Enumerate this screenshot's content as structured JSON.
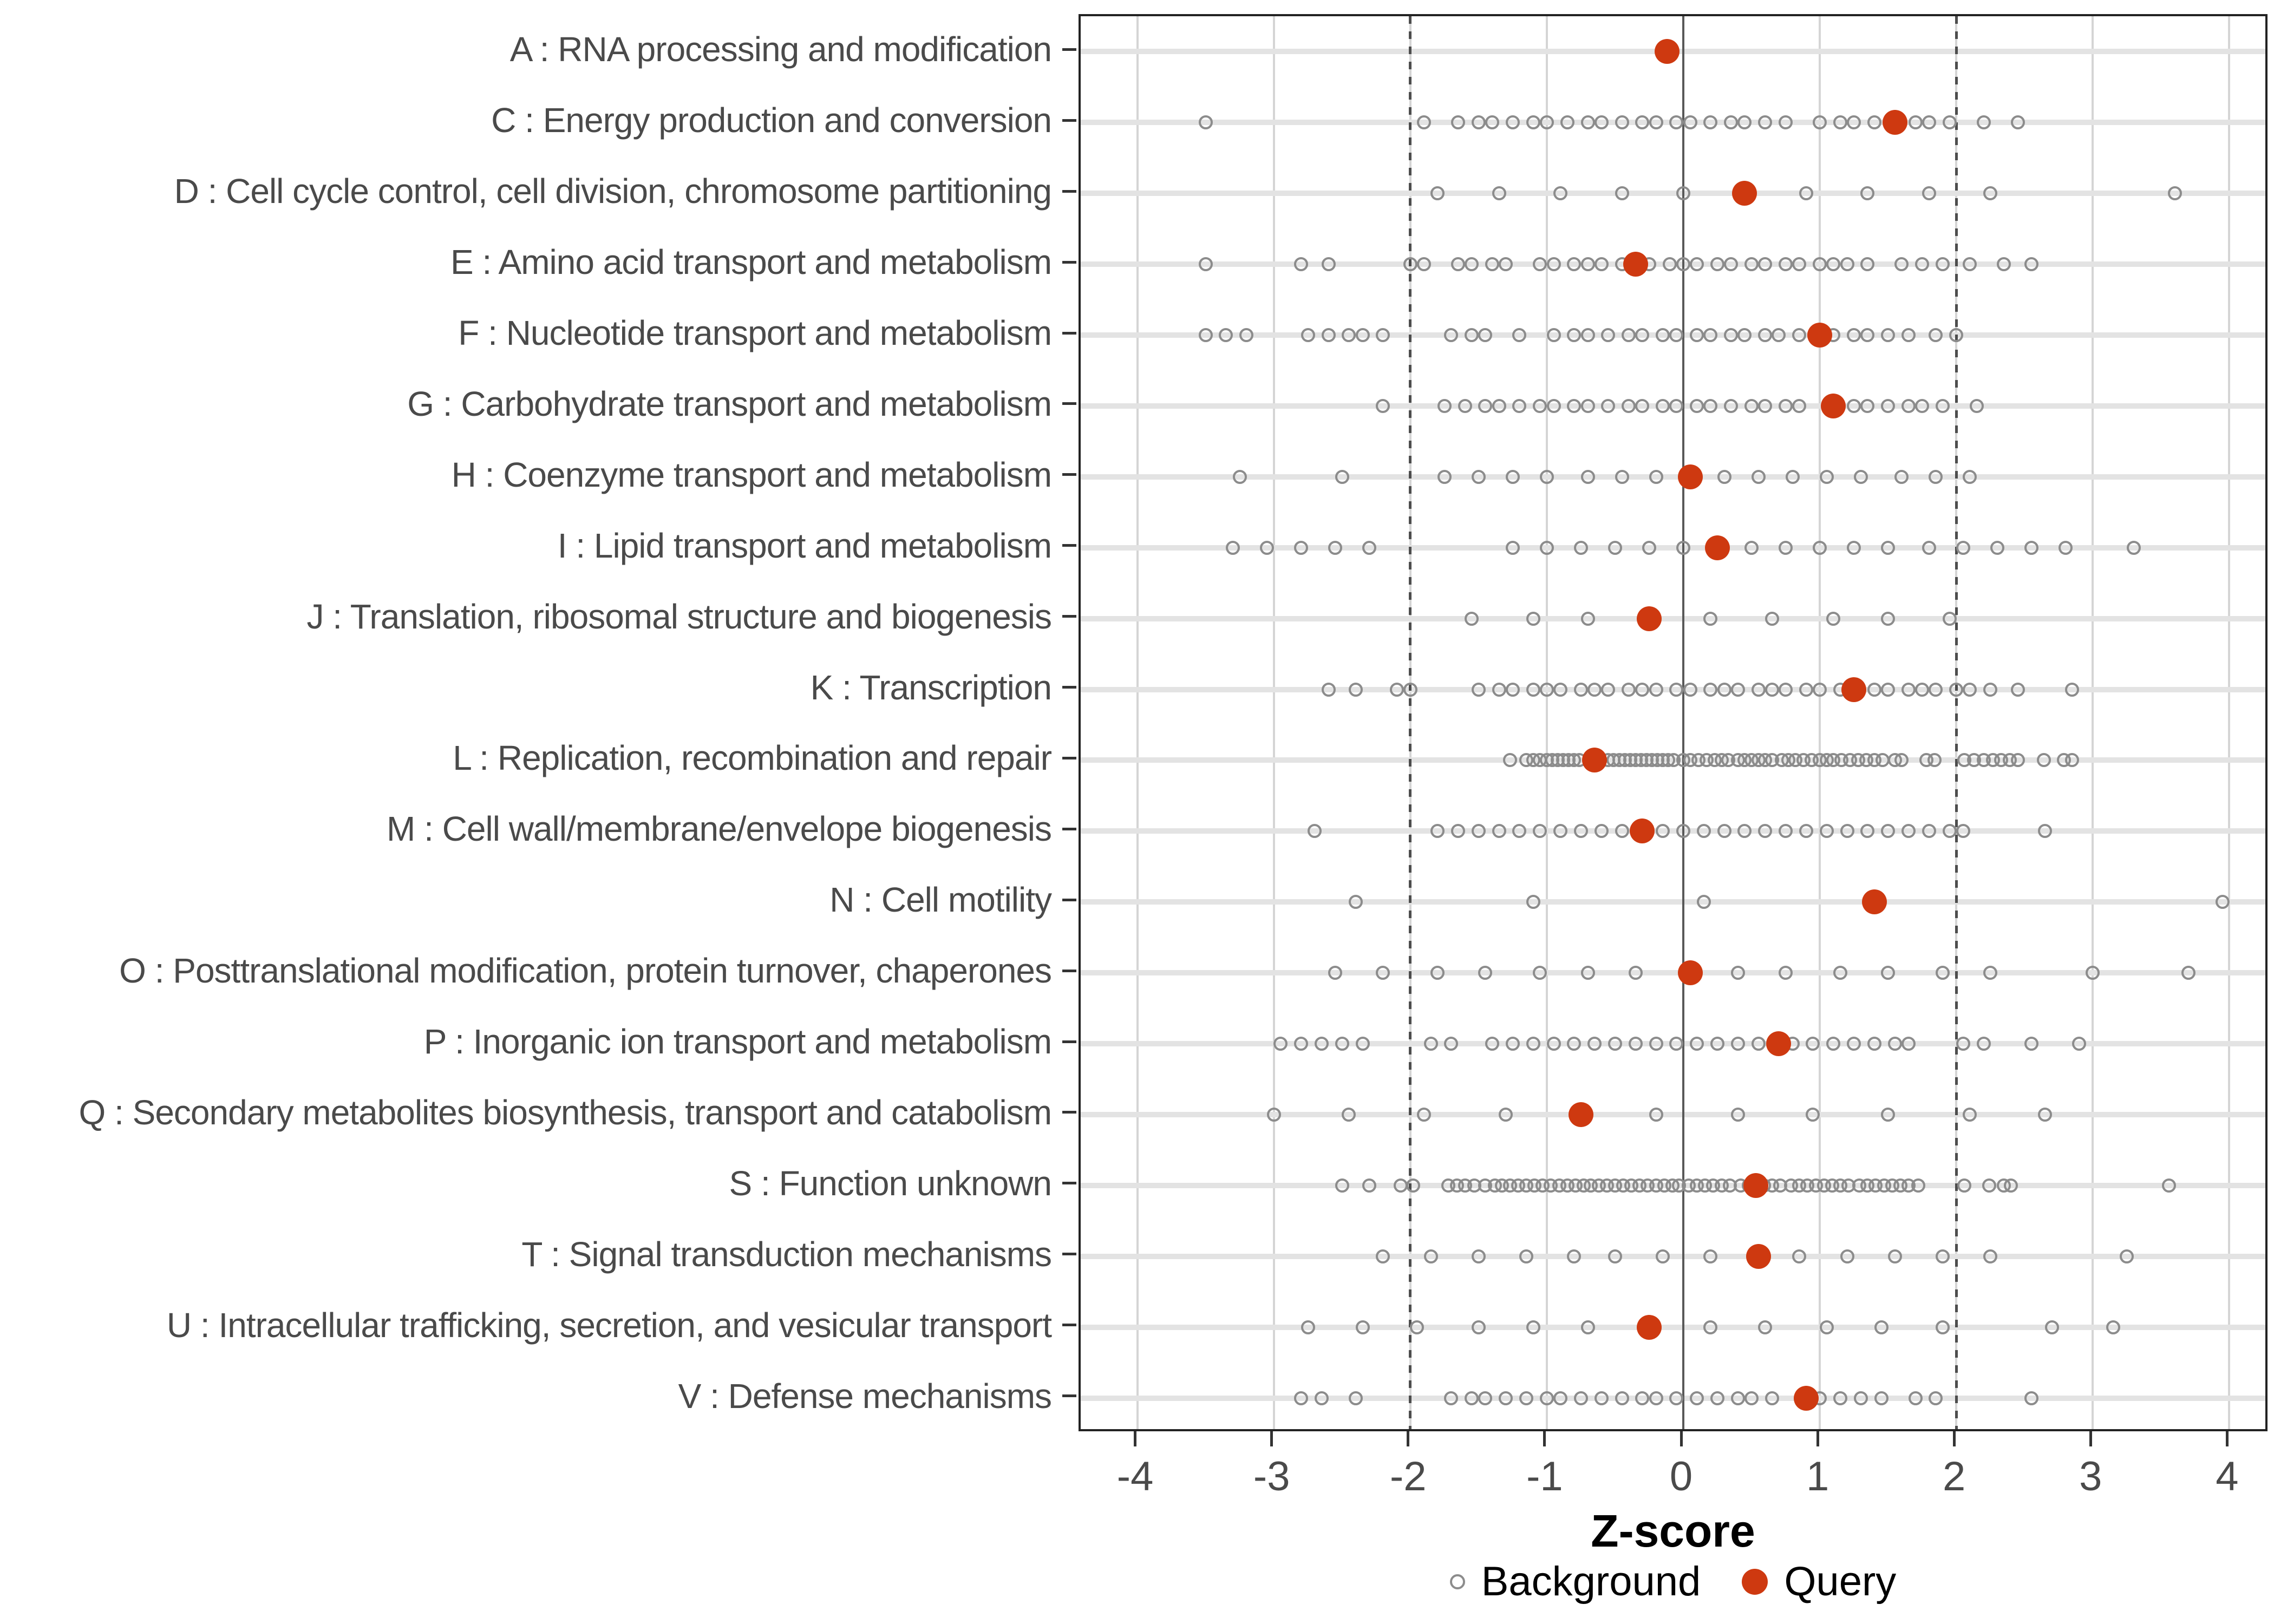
{
  "figure": {
    "colors": {
      "query_point": "#CE3910",
      "background_point_stroke": "#8C8C8C",
      "axis_text": "#4A4A4A",
      "panel_border": "#222222",
      "gridline": "#D5D5D5",
      "row_guide_line": "#E3E3E3",
      "zero_line": "#595959",
      "threshold_dashed_line": "#4D4D4D"
    }
  },
  "chart_data": {
    "type": "scatter",
    "title": "",
    "xlabel": "Z-score",
    "ylabel": "",
    "xlim": [
      -4.42,
      4.3
    ],
    "x_ticks": [
      -4,
      -3,
      -2,
      -1,
      0,
      1,
      2,
      3,
      4
    ],
    "x_tick_labels": [
      "-4",
      "-3",
      "-2",
      "-1",
      "0",
      "1",
      "2",
      "3",
      "4"
    ],
    "zero_line_x": 0,
    "threshold_lines_x": [
      -2,
      2
    ],
    "grid": "vertical-major-plus-row-guides",
    "legend": {
      "background": "Background",
      "query": "Query",
      "position": "bottom-center"
    },
    "categories": [
      {
        "label": "A : RNA processing and modification",
        "query": -0.12,
        "background": []
      },
      {
        "label": "C : Energy production and conversion",
        "query": 1.55,
        "background": [
          -3.5,
          -1.9,
          -1.65,
          -1.5,
          -1.4,
          -1.25,
          -1.1,
          -1.0,
          -0.85,
          -0.7,
          -0.6,
          -0.45,
          -0.3,
          -0.2,
          -0.05,
          0.05,
          0.2,
          0.35,
          0.45,
          0.6,
          0.75,
          1.0,
          1.15,
          1.25,
          1.4,
          1.7,
          1.8,
          1.95,
          2.2,
          2.45
        ]
      },
      {
        "label": "D : Cell cycle control, cell division, chromosome partitioning",
        "query": 0.45,
        "background": [
          -1.8,
          -1.35,
          -0.9,
          -0.45,
          0.0,
          0.9,
          1.35,
          1.8,
          2.25,
          3.6
        ]
      },
      {
        "label": "E : Amino acid transport and metabolism",
        "query": -0.35,
        "background": [
          -3.5,
          -2.8,
          -2.6,
          -2.0,
          -1.9,
          -1.65,
          -1.55,
          -1.4,
          -1.3,
          -1.05,
          -0.95,
          -0.8,
          -0.7,
          -0.6,
          -0.45,
          -0.25,
          -0.1,
          0.0,
          0.1,
          0.25,
          0.35,
          0.5,
          0.6,
          0.75,
          0.85,
          1.0,
          1.1,
          1.2,
          1.35,
          1.6,
          1.75,
          1.9,
          2.1,
          2.35,
          2.55
        ]
      },
      {
        "label": "F : Nucleotide transport and metabolism",
        "query": 1.0,
        "background": [
          -3.5,
          -3.35,
          -3.2,
          -2.75,
          -2.6,
          -2.45,
          -2.35,
          -2.2,
          -1.7,
          -1.55,
          -1.45,
          -1.2,
          -0.95,
          -0.8,
          -0.7,
          -0.55,
          -0.4,
          -0.3,
          -0.15,
          -0.05,
          0.1,
          0.2,
          0.35,
          0.45,
          0.6,
          0.7,
          0.85,
          1.1,
          1.25,
          1.35,
          1.5,
          1.65,
          1.85,
          2.0
        ]
      },
      {
        "label": "G : Carbohydrate transport and metabolism",
        "query": 1.1,
        "background": [
          -2.2,
          -1.75,
          -1.6,
          -1.45,
          -1.35,
          -1.2,
          -1.05,
          -0.95,
          -0.8,
          -0.7,
          -0.55,
          -0.4,
          -0.3,
          -0.15,
          -0.05,
          0.1,
          0.2,
          0.35,
          0.5,
          0.6,
          0.75,
          0.85,
          1.25,
          1.35,
          1.5,
          1.65,
          1.75,
          1.9,
          2.15
        ]
      },
      {
        "label": "H : Coenzyme transport and metabolism",
        "query": 0.05,
        "background": [
          -3.25,
          -2.5,
          -1.75,
          -1.5,
          -1.25,
          -1.0,
          -0.7,
          -0.45,
          -0.2,
          0.3,
          0.55,
          0.8,
          1.05,
          1.3,
          1.6,
          1.85,
          2.1
        ]
      },
      {
        "label": "I : Lipid transport and metabolism",
        "query": 0.25,
        "background": [
          -3.3,
          -3.05,
          -2.8,
          -2.55,
          -2.3,
          -1.25,
          -1.0,
          -0.75,
          -0.5,
          -0.25,
          0.0,
          0.5,
          0.75,
          1.0,
          1.25,
          1.5,
          1.8,
          2.05,
          2.3,
          2.55,
          2.8,
          3.3
        ]
      },
      {
        "label": "J : Translation, ribosomal structure and biogenesis",
        "query": -0.25,
        "background": [
          -1.55,
          -1.1,
          -0.7,
          0.2,
          0.65,
          1.1,
          1.5,
          1.95
        ]
      },
      {
        "label": "K : Transcription",
        "query": 1.25,
        "background": [
          -2.6,
          -2.4,
          -2.1,
          -2.0,
          -1.5,
          -1.35,
          -1.25,
          -1.1,
          -1.0,
          -0.9,
          -0.75,
          -0.65,
          -0.55,
          -0.4,
          -0.3,
          -0.2,
          -0.05,
          0.05,
          0.2,
          0.3,
          0.4,
          0.55,
          0.65,
          0.75,
          0.9,
          1.0,
          1.15,
          1.4,
          1.5,
          1.65,
          1.75,
          1.85,
          2.0,
          2.1,
          2.25,
          2.45,
          2.85
        ]
      },
      {
        "label": "L : Replication, recombination and repair",
        "query": -0.65,
        "background": [
          -1.27,
          -1.15,
          -1.1,
          -1.05,
          -1.0,
          -0.96,
          -0.92,
          -0.88,
          -0.84,
          -0.8,
          -0.76,
          -0.55,
          -0.51,
          -0.47,
          -0.43,
          -0.39,
          -0.35,
          -0.31,
          -0.27,
          -0.23,
          -0.19,
          -0.15,
          -0.11,
          -0.07,
          0.0,
          0.05,
          0.11,
          0.17,
          0.23,
          0.28,
          0.33,
          0.4,
          0.45,
          0.5,
          0.55,
          0.6,
          0.65,
          0.72,
          0.77,
          0.82,
          0.88,
          0.94,
          1.0,
          1.05,
          1.1,
          1.16,
          1.22,
          1.28,
          1.34,
          1.4,
          1.46,
          1.55,
          1.6,
          1.78,
          1.84,
          2.06,
          2.13,
          2.2,
          2.27,
          2.33,
          2.39,
          2.45,
          2.64,
          2.79,
          2.85
        ]
      },
      {
        "label": "M : Cell wall/membrane/envelope biogenesis",
        "query": -0.3,
        "background": [
          -2.7,
          -1.8,
          -1.65,
          -1.5,
          -1.35,
          -1.2,
          -1.05,
          -0.9,
          -0.75,
          -0.6,
          -0.45,
          -0.15,
          0.0,
          0.15,
          0.3,
          0.45,
          0.6,
          0.75,
          0.9,
          1.05,
          1.2,
          1.35,
          1.5,
          1.65,
          1.8,
          1.95,
          2.05,
          2.65
        ]
      },
      {
        "label": "N : Cell motility",
        "query": 1.4,
        "background": [
          -2.4,
          -1.1,
          0.15,
          3.95
        ]
      },
      {
        "label": "O : Posttranslational modification, protein turnover, chaperones",
        "query": 0.05,
        "background": [
          -2.55,
          -2.2,
          -1.8,
          -1.45,
          -1.05,
          -0.7,
          -0.35,
          0.4,
          0.75,
          1.15,
          1.5,
          1.9,
          2.25,
          3.0,
          3.7
        ]
      },
      {
        "label": "P : Inorganic ion transport and metabolism",
        "query": 0.7,
        "background": [
          -2.95,
          -2.8,
          -2.65,
          -2.5,
          -2.35,
          -1.85,
          -1.7,
          -1.4,
          -1.25,
          -1.1,
          -0.95,
          -0.8,
          -0.65,
          -0.5,
          -0.35,
          -0.2,
          -0.05,
          0.1,
          0.25,
          0.4,
          0.55,
          0.8,
          0.95,
          1.1,
          1.25,
          1.4,
          1.55,
          1.65,
          2.05,
          2.2,
          2.55,
          2.9
        ]
      },
      {
        "label": "Q : Secondary metabolites biosynthesis, transport and catabolism",
        "query": -0.75,
        "background": [
          -3.0,
          -2.45,
          -1.9,
          -1.3,
          -0.2,
          0.4,
          0.95,
          1.5,
          2.1,
          2.65
        ]
      },
      {
        "label": "S : Function unknown",
        "query": 0.53,
        "background": [
          -2.5,
          -2.3,
          -2.07,
          -1.98,
          -1.72,
          -1.66,
          -1.6,
          -1.53,
          -1.45,
          -1.38,
          -1.33,
          -1.27,
          -1.21,
          -1.15,
          -1.09,
          -1.03,
          -0.97,
          -0.91,
          -0.85,
          -0.79,
          -0.73,
          -0.68,
          -0.62,
          -0.56,
          -0.5,
          -0.44,
          -0.38,
          -0.32,
          -0.26,
          -0.2,
          -0.14,
          -0.08,
          -0.03,
          0.04,
          0.1,
          0.16,
          0.22,
          0.28,
          0.34,
          0.42,
          0.48,
          0.59,
          0.65,
          0.71,
          0.79,
          0.85,
          0.91,
          0.97,
          1.03,
          1.09,
          1.15,
          1.21,
          1.29,
          1.35,
          1.41,
          1.47,
          1.53,
          1.59,
          1.65,
          1.72,
          2.06,
          2.24,
          2.35,
          2.4,
          3.56
        ]
      },
      {
        "label": "T : Signal transduction mechanisms",
        "query": 0.55,
        "background": [
          -2.2,
          -1.85,
          -1.5,
          -1.15,
          -0.8,
          -0.5,
          -0.15,
          0.2,
          0.85,
          1.2,
          1.55,
          1.9,
          2.25,
          3.25
        ]
      },
      {
        "label": "U : Intracellular trafficking, secretion, and vesicular transport",
        "query": -0.25,
        "background": [
          -2.75,
          -2.35,
          -1.95,
          -1.5,
          -1.1,
          -0.7,
          0.2,
          0.6,
          1.05,
          1.45,
          1.9,
          2.7,
          3.15
        ]
      },
      {
        "label": "V : Defense mechanisms",
        "query": 0.9,
        "background": [
          -2.8,
          -2.65,
          -2.4,
          -1.7,
          -1.55,
          -1.45,
          -1.3,
          -1.15,
          -1.0,
          -0.9,
          -0.75,
          -0.6,
          -0.45,
          -0.3,
          -0.2,
          -0.05,
          0.1,
          0.25,
          0.4,
          0.5,
          0.65,
          1.0,
          1.15,
          1.3,
          1.45,
          1.7,
          1.85,
          2.55
        ]
      }
    ]
  }
}
